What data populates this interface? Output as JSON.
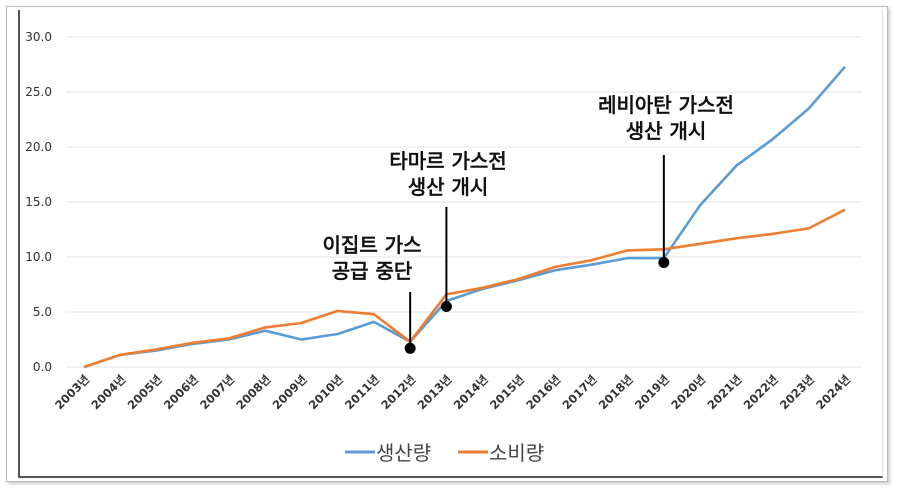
{
  "chart_data": {
    "type": "line",
    "title": "",
    "xlabel": "",
    "ylabel": "",
    "ylim": [
      0,
      30
    ],
    "yticks": [
      "0.0",
      "5.0",
      "10.0",
      "15.0",
      "20.0",
      "25.0",
      "30.0"
    ],
    "grid": true,
    "legend_position": "bottom",
    "categories": [
      "2003년",
      "2004년",
      "2005년",
      "2006년",
      "2007년",
      "2008년",
      "2009년",
      "2010년",
      "2011년",
      "2012년",
      "2013년",
      "2014년",
      "2015년",
      "2016년",
      "2017년",
      "2018년",
      "2019년",
      "2020년",
      "2021년",
      "2022년",
      "2023년",
      "2024년"
    ],
    "series": [
      {
        "name": "생산량",
        "color": "#5b9bd5",
        "values": [
          0,
          1.1,
          1.5,
          2.1,
          2.5,
          3.3,
          2.5,
          3.0,
          4.1,
          2.3,
          6.0,
          7.1,
          7.9,
          8.8,
          9.3,
          9.9,
          9.9,
          14.7,
          18.3,
          20.7,
          23.5,
          27.3
        ]
      },
      {
        "name": "소비량",
        "color": "#ed7d31",
        "values": [
          0,
          1.1,
          1.6,
          2.2,
          2.6,
          3.6,
          4.0,
          5.1,
          4.8,
          2.3,
          6.6,
          7.2,
          8.0,
          9.1,
          9.7,
          10.6,
          10.7,
          11.2,
          11.7,
          12.1,
          12.6,
          14.3
        ]
      }
    ],
    "annotations": [
      {
        "lines": [
          "이집트 가스",
          "공급 중단"
        ],
        "category": "2012년",
        "value": 1.7
      },
      {
        "lines": [
          "타마르 가스전",
          "생산 개시"
        ],
        "category": "2013년",
        "value": 5.5
      },
      {
        "lines": [
          "레비아탄 가스전",
          "생산 개시"
        ],
        "category": "2019년",
        "value": 9.5
      }
    ]
  }
}
